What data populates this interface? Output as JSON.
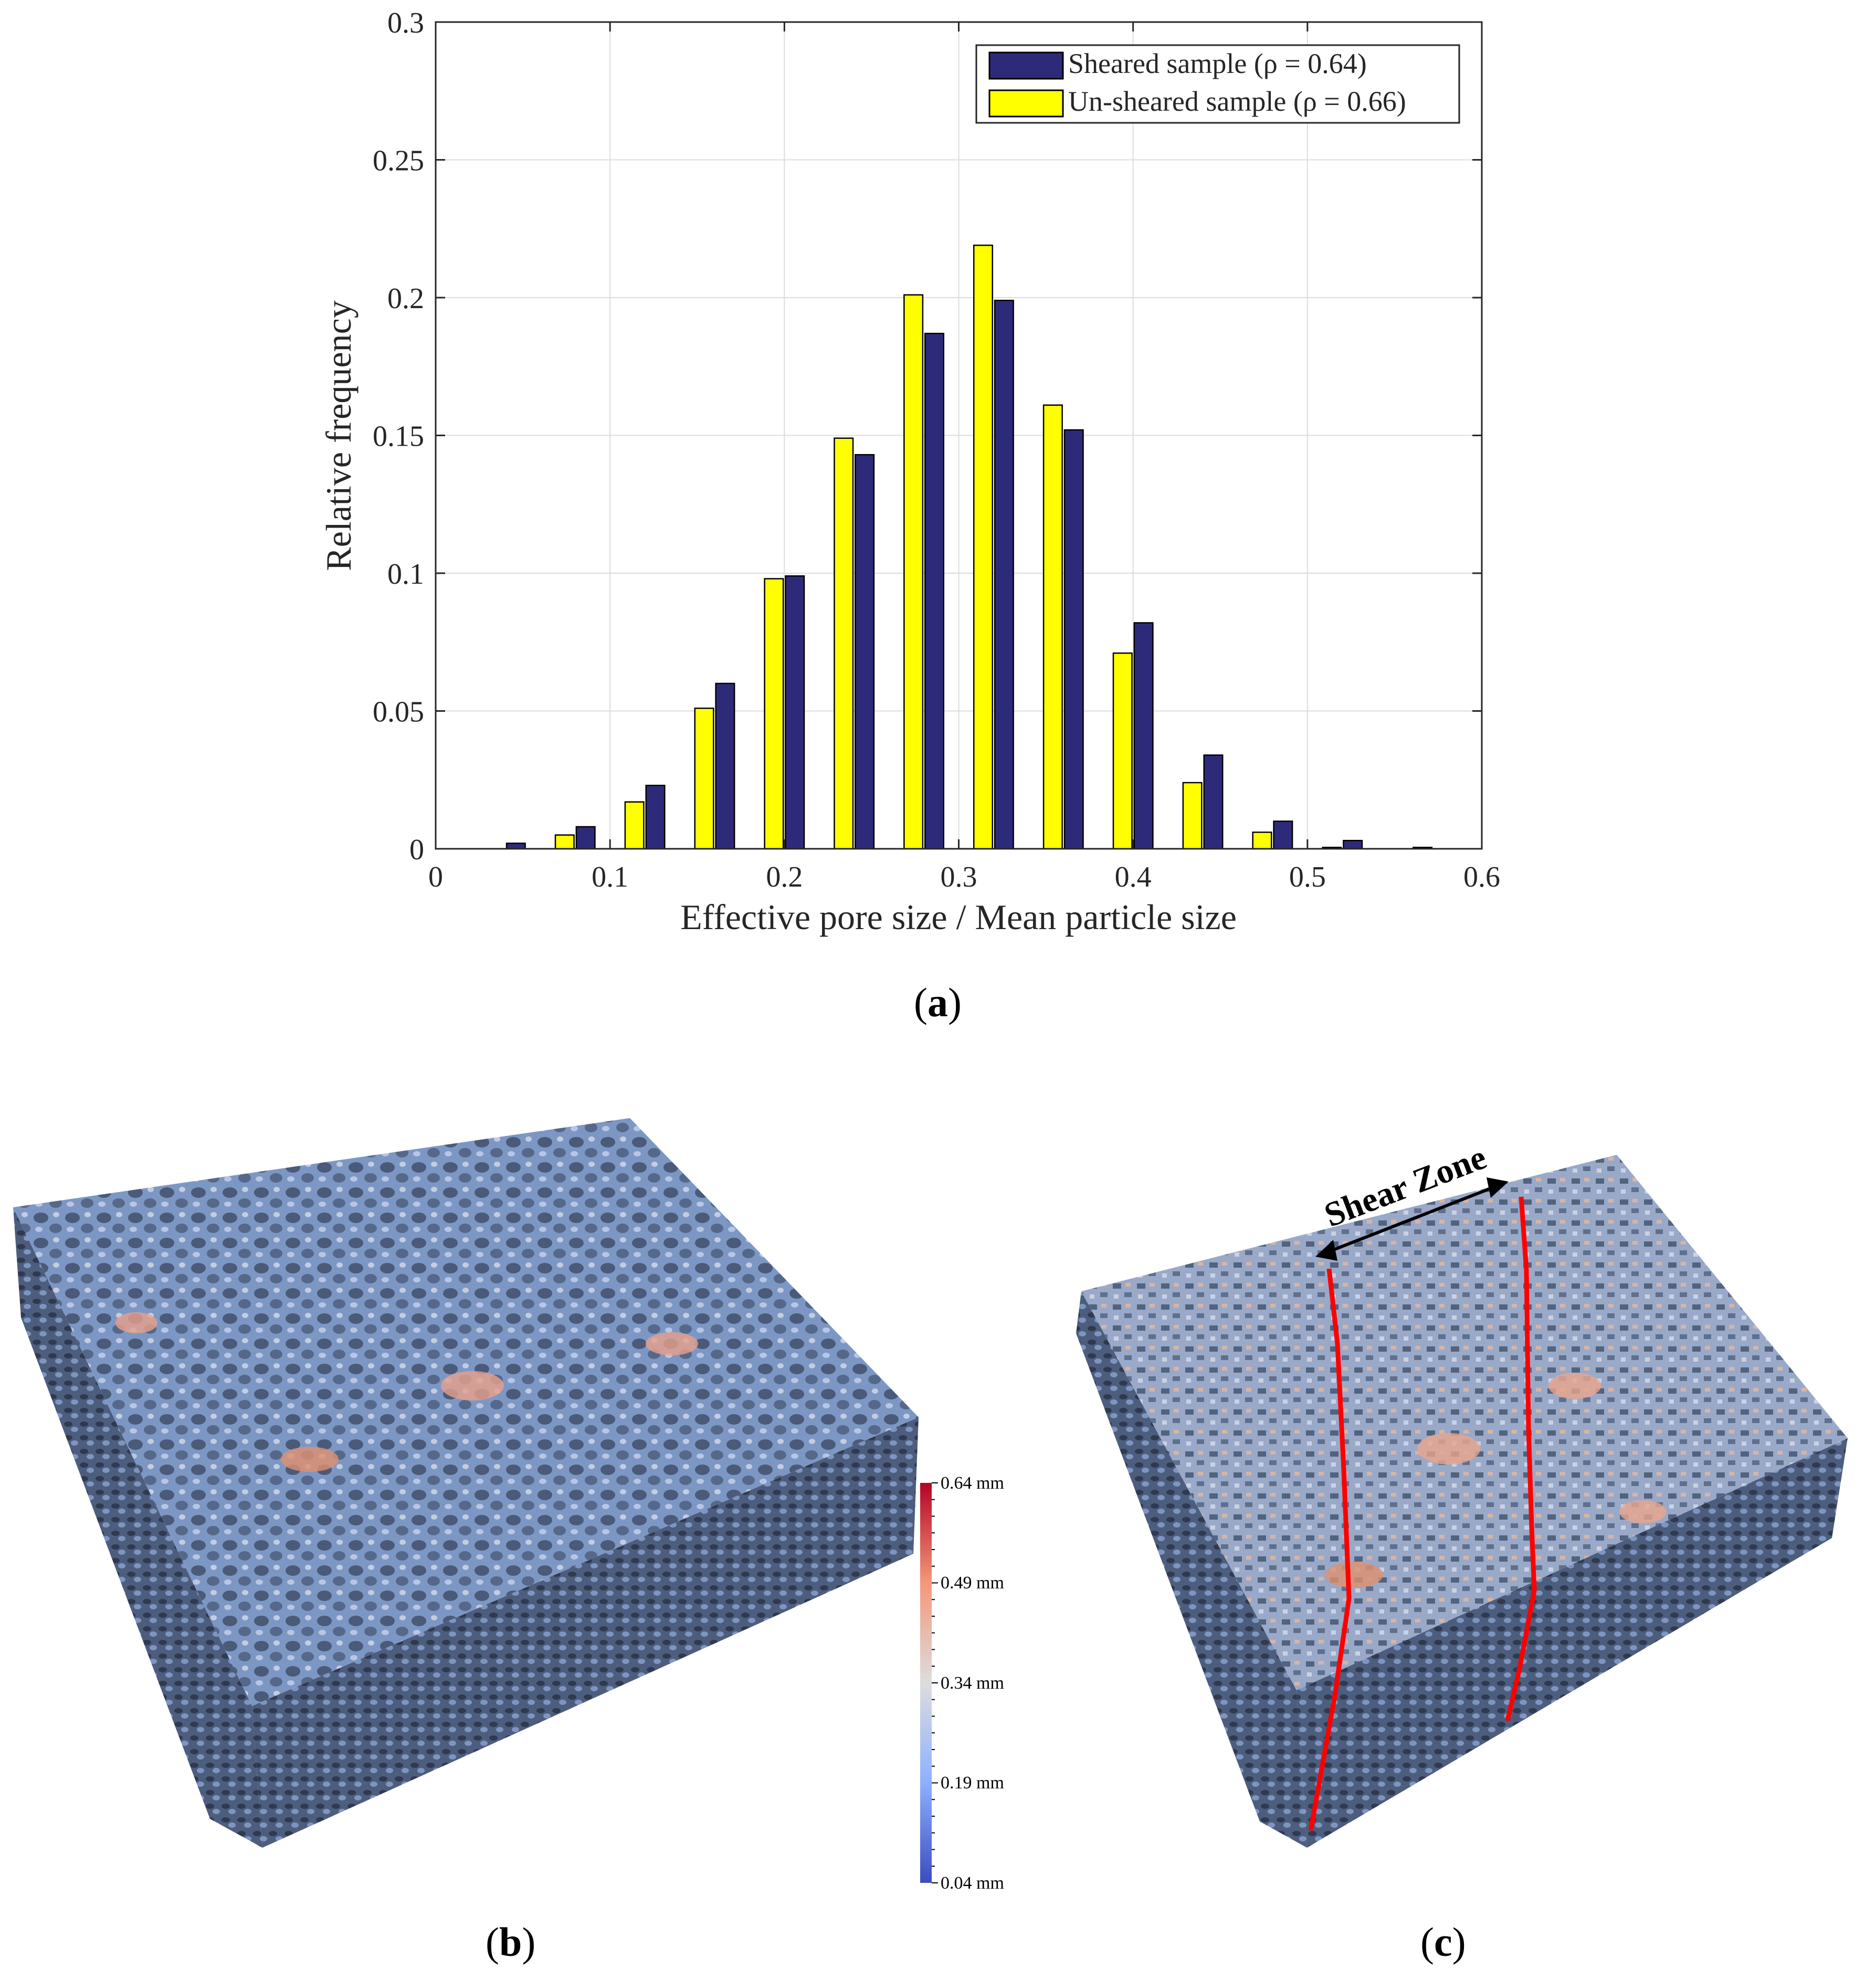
{
  "panel_labels": {
    "a": "a",
    "b": "b",
    "c": "c"
  },
  "chart_data": {
    "type": "bar",
    "xlabel": "Effective pore size / Mean particle size",
    "ylabel": "Relative frequency",
    "xlim": [
      0,
      0.6
    ],
    "ylim": [
      0,
      0.3
    ],
    "xticks": [
      0,
      0.1,
      0.2,
      0.3,
      0.4,
      0.5,
      0.6
    ],
    "xtick_labels": [
      "0",
      "0.1",
      "0.2",
      "0.3",
      "0.4",
      "0.5",
      "0.6"
    ],
    "yticks": [
      0,
      0.05,
      0.1,
      0.15,
      0.2,
      0.25,
      0.3
    ],
    "ytick_labels": [
      "0",
      "0.05",
      "0.1",
      "0.15",
      "0.2",
      "0.25",
      "0.3"
    ],
    "grid": true,
    "legend_position": "top-right",
    "x": [
      0.06,
      0.1,
      0.14,
      0.18,
      0.22,
      0.26,
      0.3,
      0.34,
      0.38,
      0.42,
      0.46,
      0.5,
      0.54,
      0.58
    ],
    "series": [
      {
        "name": "Sheared sample (ρ = 0.64)",
        "color": "#2e2a7a",
        "values": [
          0.002,
          0.008,
          0.023,
          0.06,
          0.099,
          0.143,
          0.187,
          0.199,
          0.152,
          0.082,
          0.034,
          0.01,
          0.003,
          0.0005
        ]
      },
      {
        "name": "Un-sheared sample (ρ = 0.66)",
        "color": "#ffff00",
        "values": [
          0.005,
          0.017,
          0.051,
          0.098,
          0.149,
          0.201,
          0.219,
          0.161,
          0.071,
          0.024,
          0.006,
          0.0005,
          0,
          0
        ]
      }
    ]
  },
  "colorbar": {
    "tick_labels": [
      "0.64 mm",
      "0.49 mm",
      "0.34 mm",
      "0.19 mm",
      "0.04 mm"
    ],
    "colors": [
      "#b40426",
      "#f4987a",
      "#dddddd",
      "#8db0fe",
      "#3b4cc0"
    ]
  },
  "annotation": {
    "shear_zone": "Shear Zone",
    "line_color": "#ff0000"
  }
}
